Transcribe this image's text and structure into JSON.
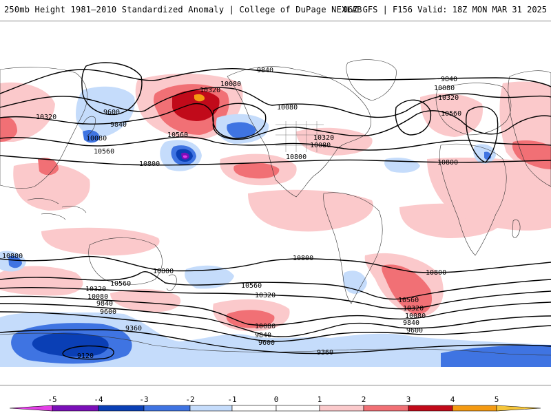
{
  "header": {
    "title": "250mb Height 1981–2010 Standardized Anomaly | College of DuPage NEXLAB",
    "run_info": "06Z GFS | F156 Valid: 18Z MON MAR 31 2025"
  },
  "map": {
    "contour_labels": [
      "9840",
      "10080",
      "10320",
      "10080",
      "9600",
      "9840",
      "10080",
      "10560",
      "10320",
      "10800",
      "10560",
      "10320",
      "10080",
      "9840",
      "10320",
      "10080",
      "10560",
      "10800",
      "10800",
      "10800",
      "10800",
      "10800",
      "10560",
      "10320",
      "10080",
      "9840",
      "9600",
      "9360",
      "10560",
      "10320",
      "10080",
      "9840",
      "9600",
      "9360",
      "10560",
      "10320",
      "10080",
      "9840",
      "9600",
      "9120",
      "10800",
      "10800",
      "10080",
      "10560",
      "10320",
      "10080",
      "9840",
      "9600",
      "9360"
    ],
    "colors": {
      "neg5": "#e33fe6",
      "neg4": "#7a0fb8",
      "neg3": "#0a3fb5",
      "neg2": "#3f74e2",
      "neg1": "#c5dcfb",
      "pos1": "#fbc9cb",
      "pos2": "#f17075",
      "pos3": "#c10a1a",
      "pos4": "#f49a12",
      "pos5": "#f5c53a"
    }
  },
  "colorbar": {
    "ticks": [
      "-5",
      "-4",
      "-3",
      "-2",
      "-1",
      "0",
      "1",
      "2",
      "3",
      "4",
      "5"
    ]
  }
}
